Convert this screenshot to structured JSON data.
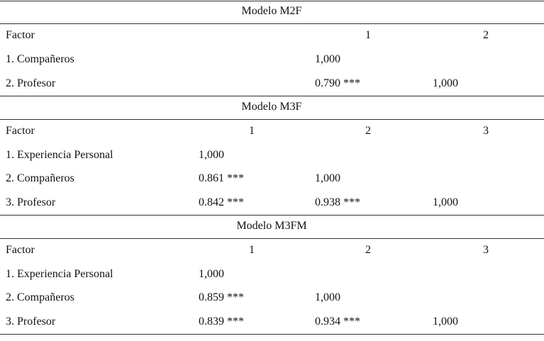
{
  "sections": [
    {
      "title": "Modelo M2F",
      "header": {
        "label": "Factor",
        "columns": [
          "1",
          "2"
        ]
      },
      "rows": [
        {
          "label": "1. Compañeros",
          "cells": [
            "1,000"
          ]
        },
        {
          "label": "2. Profesor",
          "cells": [
            "0.790 ***",
            "1,000"
          ]
        }
      ]
    },
    {
      "title": "Modelo M3F",
      "header": {
        "label": "Factor",
        "columns": [
          "1",
          "2",
          "3"
        ]
      },
      "rows": [
        {
          "label": "1. Experiencia Personal",
          "cells": [
            "1,000"
          ]
        },
        {
          "label": "2. Compañeros",
          "cells": [
            "0.861 ***",
            "1,000"
          ]
        },
        {
          "label": "3. Profesor",
          "cells": [
            "0.842 ***",
            "0.938 ***",
            "1,000"
          ]
        }
      ]
    },
    {
      "title": "Modelo M3FM",
      "header": {
        "label": "Factor",
        "columns": [
          "1",
          "2",
          "3"
        ]
      },
      "rows": [
        {
          "label": "1. Experiencia Personal",
          "cells": [
            "1,000"
          ]
        },
        {
          "label": "2. Compañeros",
          "cells": [
            "0.859 ***",
            "1,000"
          ]
        },
        {
          "label": "3. Profesor",
          "cells": [
            "0.839 ***",
            "0.934 ***",
            "1,000"
          ]
        }
      ]
    }
  ]
}
